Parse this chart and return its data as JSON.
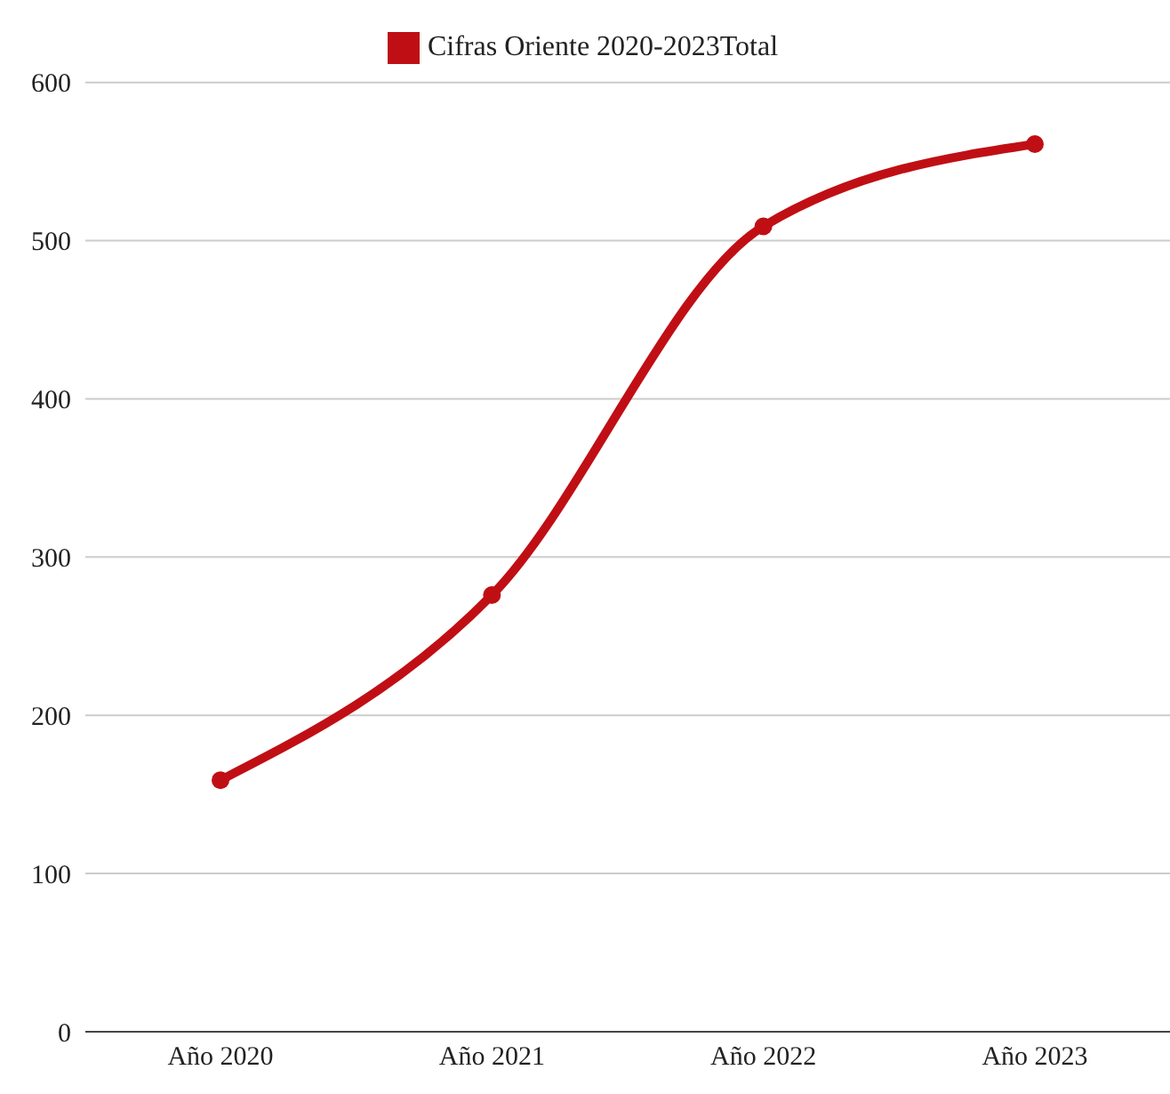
{
  "chart_data": {
    "type": "line",
    "categories": [
      "Año 2020",
      "Año 2021",
      "Año 2022",
      "Año 2023"
    ],
    "series": [
      {
        "name": "Cifras Oriente 2020-2023Total",
        "color": "#c00f14",
        "values": [
          159,
          276,
          509,
          561
        ]
      }
    ],
    "ylim": [
      0,
      600
    ],
    "yticks": [
      0,
      100,
      200,
      300,
      400,
      500,
      600
    ],
    "grid": "y",
    "legend": "top",
    "marker": "circle",
    "line_style": "solid"
  }
}
